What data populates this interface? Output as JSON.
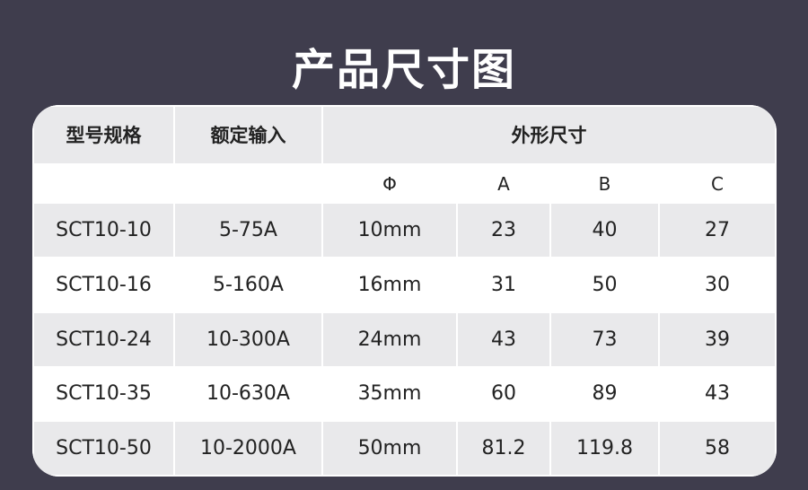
{
  "title": "产品尺寸图",
  "headers": {
    "model": "型号规格",
    "input": "额定输入",
    "dims": "外形尺寸"
  },
  "subheaders": [
    "Φ",
    "A",
    "B",
    "C"
  ],
  "rows": [
    [
      "SCT10-10",
      "5-75A",
      "10mm",
      "23",
      "40",
      "27"
    ],
    [
      "SCT10-16",
      "5-160A",
      "16mm",
      "31",
      "50",
      "30"
    ],
    [
      "SCT10-24",
      "10-300A",
      "24mm",
      "43",
      "73",
      "39"
    ],
    [
      "SCT10-35",
      "10-630A",
      "35mm",
      "60",
      "89",
      "43"
    ],
    [
      "SCT10-50",
      "10-2000A",
      "50mm",
      "81.2",
      "119.8",
      "58"
    ]
  ]
}
